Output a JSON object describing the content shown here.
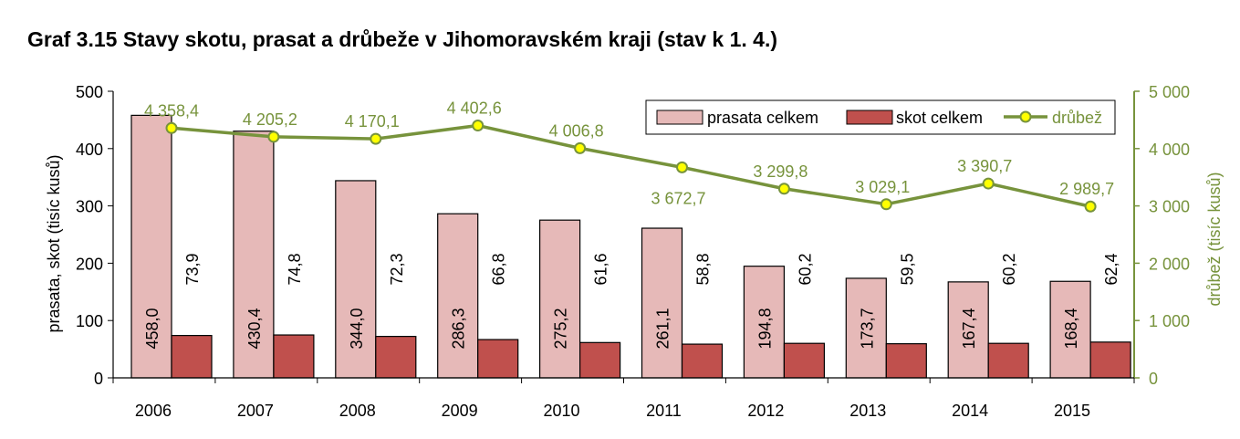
{
  "title": "Graf 3.15 Stavy skotu, prasat a drůbeže v Jihomoravském kraji (stav k 1. 4.)",
  "chart_data": {
    "type": "bar",
    "categories": [
      "2006",
      "2007",
      "2008",
      "2009",
      "2010",
      "2011",
      "2012",
      "2013",
      "2014",
      "2015"
    ],
    "series": [
      {
        "name": "prasata celkem",
        "type": "bar",
        "axis": "left",
        "color": "#e6b9b8",
        "values": [
          458.0,
          430.4,
          344.0,
          286.3,
          275.2,
          261.1,
          194.8,
          173.7,
          167.4,
          168.4
        ],
        "labels": [
          "458,0",
          "430,4",
          "344,0",
          "286,3",
          "275,2",
          "261,1",
          "194,8",
          "173,7",
          "167,4",
          "168,4"
        ]
      },
      {
        "name": "skot celkem",
        "type": "bar",
        "axis": "left",
        "color": "#c0504d",
        "values": [
          73.9,
          74.8,
          72.3,
          66.8,
          61.6,
          58.8,
          60.2,
          59.5,
          60.2,
          62.4
        ],
        "labels": [
          "73,9",
          "74,8",
          "72,3",
          "66,8",
          "61,6",
          "58,8",
          "60,2",
          "59,5",
          "60,2",
          "62,4"
        ]
      },
      {
        "name": "drůbež",
        "type": "line",
        "axis": "right",
        "color": "#77933c",
        "marker_color": "#ffff00",
        "values": [
          4358.4,
          4205.2,
          4170.1,
          4402.6,
          4006.8,
          3672.7,
          3299.8,
          3029.1,
          3390.7,
          2989.7
        ],
        "labels": [
          "4 358,4",
          "4 205,2",
          "4 170,1",
          "4 402,6",
          "4 006,8",
          "3 672,7",
          "3 299,8",
          "3 029,1",
          "3 390,7",
          "2 989,7"
        ]
      }
    ],
    "ylabel": "prasata, skot  (tisíc kusů)",
    "y2label": "drůbež (tisíc kusů)",
    "ylim": [
      0,
      500
    ],
    "y2lim": [
      0,
      5000
    ],
    "yticks": [
      "0",
      "100",
      "200",
      "300",
      "400",
      "500"
    ],
    "y2ticks": [
      "0",
      "1 000",
      "2 000",
      "3 000",
      "4 000",
      "5 000"
    ],
    "grid": false,
    "legend_position": "top-right"
  }
}
